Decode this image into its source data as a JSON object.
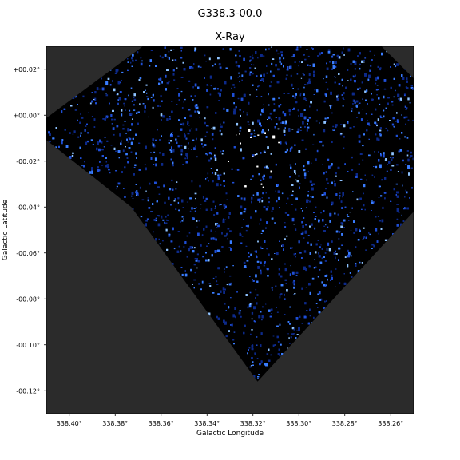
{
  "figure": {
    "suptitle": "G338.3-00.0",
    "title": "X-Ray"
  },
  "colors": {
    "background_outside_coverage": "#2b2b2b",
    "data_low": "#000000",
    "data_mid": "#1f4fd6",
    "data_high": "#7fb8ff",
    "data_peak": "#ffffff"
  },
  "chart_data": {
    "type": "heatmap",
    "title": "X-Ray",
    "subtitle": "G338.3-00.0",
    "xlabel": "Galactic Longitude",
    "ylabel": "Galactic Latitude",
    "xlim": [
      338.41,
      338.25
    ],
    "ylim": [
      -0.13,
      0.03
    ],
    "x_ticks": [
      338.4,
      338.38,
      338.36,
      338.34,
      338.32,
      338.3,
      338.28,
      338.26
    ],
    "x_tick_labels": [
      "338.40°",
      "338.38°",
      "338.36°",
      "338.34°",
      "338.32°",
      "338.30°",
      "338.28°",
      "338.26°"
    ],
    "y_ticks": [
      0.02,
      0.0,
      -0.02,
      -0.04,
      -0.06,
      -0.08,
      -0.1,
      -0.12
    ],
    "y_tick_labels": [
      "+00.02°",
      "+00.00°",
      "-00.02°",
      "-00.04°",
      "-00.06°",
      "-00.08°",
      "-00.10°",
      "-00.12°"
    ],
    "coverage_polygon_lb": [
      [
        338.368,
        0.03
      ],
      [
        338.411,
        -0.002
      ],
      [
        338.411,
        -0.01
      ],
      [
        338.373,
        -0.04
      ],
      [
        338.318,
        -0.116
      ],
      [
        338.25,
        -0.042
      ],
      [
        338.25,
        0.016
      ],
      [
        338.264,
        0.03
      ]
    ],
    "colormap": "black-blue-white",
    "brightest_region_lb": [
      338.318,
      -0.015
    ],
    "grid": false
  }
}
